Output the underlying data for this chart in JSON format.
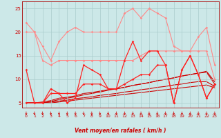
{
  "xlabel": "Vent moyen/en rafales ( km/h )",
  "xlim": [
    -0.5,
    23.5
  ],
  "ylim": [
    4,
    26.5
  ],
  "yticks": [
    5,
    10,
    15,
    20,
    25
  ],
  "xticks": [
    0,
    1,
    2,
    3,
    4,
    5,
    6,
    7,
    8,
    9,
    10,
    11,
    12,
    13,
    14,
    15,
    16,
    17,
    18,
    19,
    20,
    21,
    22,
    23
  ],
  "bg_color": "#cce8e8",
  "grid_color": "#aacccc",
  "series": [
    {
      "y": [
        22,
        20,
        17,
        14,
        18,
        20,
        21,
        20,
        20,
        20,
        20,
        20,
        24,
        25,
        23,
        25,
        24,
        23,
        17,
        16,
        16,
        19,
        21,
        13
      ],
      "color": "#ff8888",
      "lw": 0.8,
      "marker": "D",
      "ms": 1.8,
      "zorder": 2
    },
    {
      "y": [
        20,
        20,
        14,
        13,
        14,
        14,
        14,
        14,
        14,
        14,
        14,
        14,
        14,
        14,
        15,
        16,
        16,
        16,
        16,
        16,
        16,
        16,
        16,
        10
      ],
      "color": "#ff8888",
      "lw": 0.8,
      "marker": "D",
      "ms": 1.8,
      "zorder": 2
    },
    {
      "y": [
        12,
        5,
        5,
        8,
        7,
        5,
        6,
        13,
        12,
        11,
        8,
        8,
        14,
        18,
        14,
        16,
        16,
        13,
        5,
        12,
        15,
        11,
        6,
        9
      ],
      "color": "#ff2222",
      "lw": 0.9,
      "marker": "D",
      "ms": 1.8,
      "zorder": 3
    },
    {
      "y": [
        5,
        5,
        5,
        7,
        7,
        7,
        7,
        9,
        9,
        9,
        8,
        8,
        9,
        10,
        11,
        11,
        13,
        13,
        5,
        12,
        15,
        11,
        6,
        9
      ],
      "color": "#ff2222",
      "lw": 0.9,
      "marker": "D",
      "ms": 1.8,
      "zorder": 3
    },
    {
      "y": [
        5,
        5,
        5.2,
        5.5,
        6.0,
        6.2,
        6.5,
        7.0,
        7.2,
        7.5,
        7.8,
        8.0,
        8.3,
        8.7,
        9.0,
        9.3,
        9.7,
        10.0,
        10.3,
        10.7,
        11.0,
        11.3,
        11.7,
        9.5
      ],
      "color": "#cc0000",
      "lw": 0.8,
      "marker": null,
      "ms": 0,
      "zorder": 1
    },
    {
      "y": [
        5,
        5,
        5,
        5.3,
        5.7,
        6.0,
        6.3,
        6.7,
        7.0,
        7.3,
        7.7,
        8.0,
        8.3,
        8.7,
        9.0,
        9.3,
        9.7,
        10.0,
        10.3,
        10.7,
        11.0,
        11.3,
        11.5,
        9.0
      ],
      "color": "#cc0000",
      "lw": 0.8,
      "marker": null,
      "ms": 0,
      "zorder": 1
    },
    {
      "y": [
        5,
        5,
        5,
        5.2,
        5.4,
        5.6,
        5.9,
        6.1,
        6.3,
        6.6,
        6.8,
        7.0,
        7.3,
        7.5,
        7.8,
        8.0,
        8.3,
        8.5,
        8.8,
        9.0,
        9.3,
        9.5,
        9.5,
        8.5
      ],
      "color": "#cc0000",
      "lw": 0.8,
      "marker": null,
      "ms": 0,
      "zorder": 1
    },
    {
      "y": [
        5,
        5,
        5,
        5.0,
        5.2,
        5.4,
        5.6,
        5.8,
        6.0,
        6.2,
        6.4,
        6.6,
        6.8,
        7.0,
        7.2,
        7.4,
        7.6,
        7.8,
        8.0,
        8.2,
        8.4,
        8.6,
        8.8,
        8.2
      ],
      "color": "#cc0000",
      "lw": 0.8,
      "marker": null,
      "ms": 0,
      "zorder": 1
    }
  ]
}
